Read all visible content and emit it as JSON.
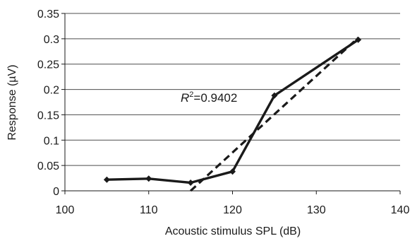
{
  "chart_data": {
    "type": "line",
    "title": "",
    "xlabel": "Acoustic stimulus SPL (dB)",
    "ylabel": "Response (µV)",
    "xlim": [
      100,
      140
    ],
    "ylim": [
      0,
      0.35
    ],
    "x_ticks": [
      "100",
      "110",
      "120",
      "130",
      "140"
    ],
    "y_ticks": [
      "0",
      "0.05",
      "0.1",
      "0.15",
      "0.2",
      "0.25",
      "0.3",
      "0.35"
    ],
    "grid": "horizontal",
    "legend": "none",
    "series": [
      {
        "style": "solid-with-diamond-markers",
        "color": "#1a1a1a",
        "x": [
          105,
          110,
          115,
          120,
          125,
          135
        ],
        "y": [
          0.022,
          0.024,
          0.016,
          0.038,
          0.188,
          0.298
        ]
      },
      {
        "style": "dashed-trendline",
        "color": "#1a1a1a",
        "x": [
          115,
          135
        ],
        "y": [
          0.0,
          0.302
        ]
      }
    ],
    "annotation": {
      "r_symbol": "R",
      "superscript": "2",
      "text": "=0.9402"
    }
  }
}
